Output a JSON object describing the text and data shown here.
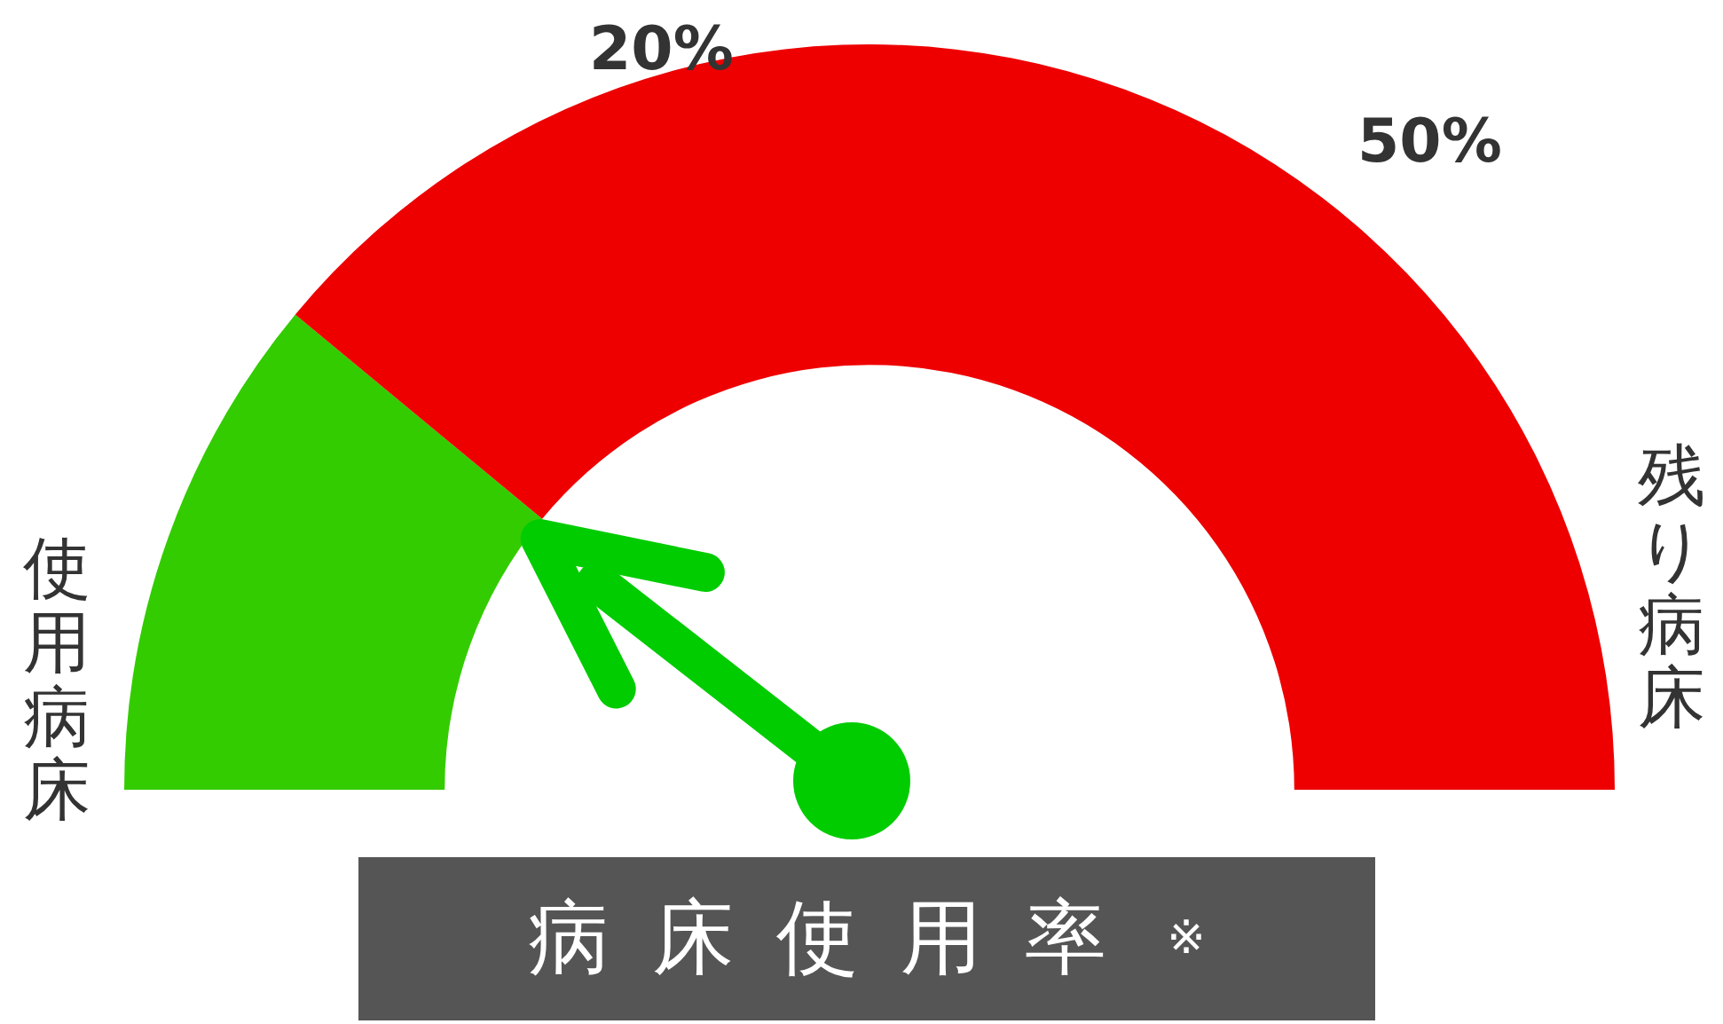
{
  "chart_data": {
    "type": "donut",
    "title": "病床使用率",
    "categories": [
      "使用病床",
      "残り病床"
    ],
    "values": [
      22,
      78
    ],
    "colors": [
      "#33cc00",
      "#ee0000"
    ],
    "needle": "使用病床",
    "annotations": [
      "20%",
      "50%",
      "※"
    ],
    "legend": false
  }
}
